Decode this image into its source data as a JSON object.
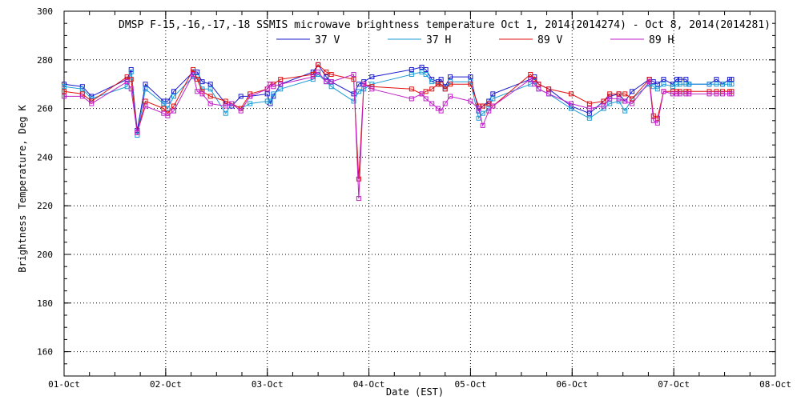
{
  "chart_data": {
    "type": "line",
    "title": "DMSP F-15,-16,-17,-18 SSMIS microwave brightness temperature Oct  1, 2014(2014274) - Oct  8, 2014(2014281)",
    "xlabel": "Date (EST)",
    "ylabel": "Brightness Temperature, Deg K",
    "x_ticks": [
      "01-Oct",
      "02-Oct",
      "03-Oct",
      "04-Oct",
      "05-Oct",
      "06-Oct",
      "07-Oct",
      "08-Oct"
    ],
    "xlim": [
      0,
      7
    ],
    "ylim": [
      150,
      300
    ],
    "y_ticks": [
      160,
      180,
      200,
      220,
      240,
      260,
      280,
      300
    ],
    "grid": true,
    "legend_position": "top-center",
    "series": [
      {
        "name": "37 V",
        "color": "#1a1acc",
        "x": [
          0.0,
          0.18,
          0.27,
          0.62,
          0.66,
          0.72,
          0.8,
          0.98,
          1.02,
          1.08,
          1.27,
          1.31,
          1.36,
          1.44,
          1.59,
          1.65,
          1.74,
          1.83,
          2.0,
          2.03,
          2.06,
          2.13,
          2.45,
          2.5,
          2.58,
          2.63,
          2.85,
          2.9,
          2.95,
          3.03,
          3.42,
          3.52,
          3.56,
          3.62,
          3.68,
          3.71,
          3.75,
          3.8,
          4.0,
          4.08,
          4.12,
          4.18,
          4.22,
          4.59,
          4.63,
          4.67,
          4.77,
          4.99,
          5.17,
          5.31,
          5.37,
          5.46,
          5.52,
          5.59,
          5.76,
          5.8,
          5.84,
          5.9,
          5.99,
          6.03,
          6.06,
          6.12,
          6.15,
          6.35,
          6.42,
          6.48,
          6.55,
          6.57
        ],
        "y": [
          270,
          269,
          265,
          272,
          276,
          251,
          270,
          263,
          263,
          267,
          275,
          275,
          271,
          270,
          262,
          261,
          265,
          265,
          266,
          262,
          265,
          270,
          275,
          278,
          273,
          271,
          266,
          270,
          271,
          273,
          276,
          277,
          276,
          272,
          271,
          272,
          269,
          273,
          273,
          259,
          261,
          263,
          266,
          272,
          273,
          270,
          268,
          261,
          258,
          263,
          265,
          266,
          263,
          267,
          272,
          271,
          270,
          272,
          270,
          272,
          272,
          272,
          270,
          270,
          272,
          270,
          272,
          272
        ]
      },
      {
        "name": "37 H",
        "color": "#1a9ad6",
        "x": [
          0.0,
          0.18,
          0.27,
          0.62,
          0.66,
          0.72,
          0.8,
          0.98,
          1.02,
          1.08,
          1.27,
          1.31,
          1.36,
          1.44,
          1.59,
          1.65,
          1.74,
          1.83,
          2.0,
          2.03,
          2.06,
          2.13,
          2.45,
          2.5,
          2.58,
          2.63,
          2.85,
          2.9,
          2.95,
          3.03,
          3.42,
          3.52,
          3.56,
          3.62,
          3.68,
          3.71,
          3.75,
          3.8,
          4.0,
          4.08,
          4.12,
          4.18,
          4.22,
          4.59,
          4.63,
          4.67,
          4.77,
          4.99,
          5.17,
          5.31,
          5.37,
          5.46,
          5.52,
          5.59,
          5.76,
          5.8,
          5.84,
          5.9,
          5.99,
          6.03,
          6.06,
          6.12,
          6.15,
          6.35,
          6.42,
          6.48,
          6.55,
          6.57
        ],
        "y": [
          269,
          268,
          264,
          269,
          275,
          249,
          268,
          262,
          260,
          265,
          273,
          273,
          268,
          268,
          258,
          262,
          260,
          262,
          263,
          263,
          266,
          268,
          272,
          274,
          271,
          269,
          263,
          267,
          268,
          270,
          274,
          275,
          274,
          271,
          270,
          270,
          268,
          271,
          271,
          256,
          258,
          260,
          264,
          270,
          271,
          268,
          266,
          260,
          256,
          260,
          262,
          263,
          259,
          264,
          270,
          269,
          268,
          270,
          269,
          270,
          270,
          270,
          270,
          270,
          270,
          270,
          270,
          270
        ]
      },
      {
        "name": "89 V",
        "color": "#e01010",
        "x": [
          0.0,
          0.18,
          0.27,
          0.62,
          0.66,
          0.72,
          0.8,
          0.98,
          1.02,
          1.08,
          1.27,
          1.31,
          1.36,
          1.44,
          1.59,
          1.65,
          1.74,
          1.83,
          2.0,
          2.03,
          2.06,
          2.13,
          2.45,
          2.5,
          2.58,
          2.63,
          2.85,
          2.9,
          2.95,
          3.03,
          3.42,
          3.52,
          3.56,
          3.62,
          3.68,
          3.71,
          3.75,
          3.8,
          4.0,
          4.08,
          4.12,
          4.18,
          4.22,
          4.59,
          4.63,
          4.67,
          4.77,
          4.99,
          5.17,
          5.31,
          5.37,
          5.46,
          5.52,
          5.59,
          5.76,
          5.8,
          5.84,
          5.9,
          5.99,
          6.03,
          6.06,
          6.12,
          6.15,
          6.35,
          6.42,
          6.48,
          6.55,
          6.57
        ],
        "y": [
          267,
          266,
          263,
          273,
          272,
          250,
          263,
          260,
          258,
          261,
          276,
          272,
          267,
          265,
          263,
          262,
          260,
          266,
          268,
          270,
          270,
          272,
          274,
          278,
          275,
          274,
          272,
          231,
          270,
          269,
          268,
          266,
          267,
          268,
          270,
          270,
          268,
          270,
          270,
          261,
          261,
          262,
          261,
          274,
          272,
          270,
          268,
          266,
          262,
          263,
          266,
          266,
          266,
          264,
          272,
          257,
          256,
          267,
          267,
          267,
          267,
          267,
          267,
          267,
          267,
          267,
          267,
          267
        ]
      },
      {
        "name": "89 H",
        "color": "#c020c8",
        "x": [
          0.0,
          0.18,
          0.27,
          0.62,
          0.66,
          0.72,
          0.8,
          0.98,
          1.02,
          1.08,
          1.27,
          1.31,
          1.36,
          1.44,
          1.59,
          1.65,
          1.74,
          1.83,
          2.0,
          2.03,
          2.06,
          2.13,
          2.45,
          2.5,
          2.58,
          2.63,
          2.85,
          2.9,
          2.95,
          3.03,
          3.42,
          3.52,
          3.56,
          3.62,
          3.68,
          3.71,
          3.75,
          3.8,
          4.0,
          4.08,
          4.12,
          4.18,
          4.22,
          4.59,
          4.63,
          4.67,
          4.77,
          4.99,
          5.17,
          5.31,
          5.37,
          5.46,
          5.52,
          5.59,
          5.76,
          5.8,
          5.84,
          5.9,
          5.99,
          6.03,
          6.06,
          6.12,
          6.15,
          6.35,
          6.42,
          6.48,
          6.55,
          6.57
        ],
        "y": [
          265,
          265,
          262,
          271,
          268,
          250,
          261,
          258,
          257,
          259,
          274,
          267,
          266,
          262,
          261,
          262,
          259,
          265,
          268,
          270,
          269,
          270,
          273,
          275,
          271,
          271,
          274,
          223,
          270,
          268,
          264,
          266,
          264,
          262,
          260,
          259,
          262,
          265,
          263,
          260,
          253,
          259,
          261,
          272,
          270,
          268,
          266,
          262,
          260,
          261,
          264,
          264,
          263,
          262,
          271,
          255,
          254,
          267,
          266,
          266,
          266,
          266,
          266,
          266,
          266,
          266,
          266,
          266
        ]
      }
    ]
  }
}
